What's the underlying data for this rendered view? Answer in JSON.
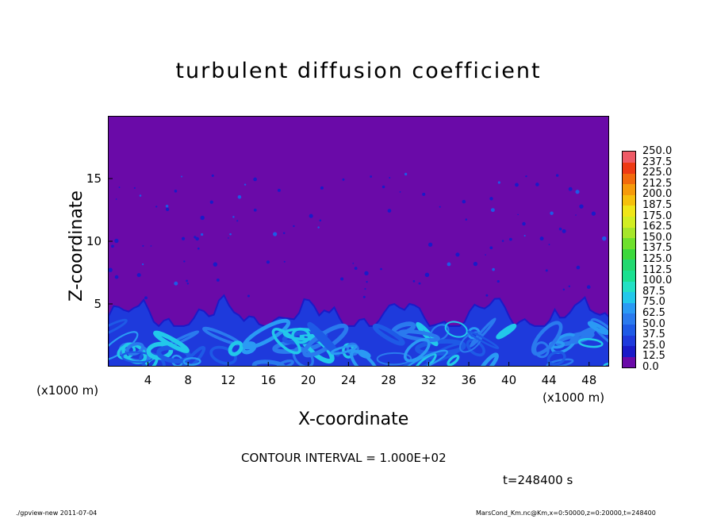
{
  "chart_data": {
    "type": "heatmap",
    "title": "turbulent diffusion coefficient",
    "xlabel": "X-coordinate",
    "ylabel": "Z-coordinate",
    "x_unit": "(x1000 m)",
    "xlim": [
      0,
      50
    ],
    "ylim": [
      0,
      20
    ],
    "x_ticks": [
      4,
      8,
      12,
      16,
      20,
      24,
      28,
      32,
      36,
      40,
      44,
      48
    ],
    "y_ticks": [
      5,
      10,
      15
    ],
    "colorbar": {
      "levels": [
        "0.0",
        "12.5",
        "25.0",
        "37.5",
        "50.0",
        "62.5",
        "75.0",
        "87.5",
        "100.0",
        "112.5",
        "125.0",
        "137.5",
        "150.0",
        "162.5",
        "175.0",
        "187.5",
        "200.0",
        "212.5",
        "225.0",
        "237.5",
        "250.0"
      ],
      "colors": [
        "#6a0aa8",
        "#1a1ac8",
        "#1e3adc",
        "#1e5ae6",
        "#2a7aee",
        "#2a9af4",
        "#22c8ea",
        "#22e0c4",
        "#1ae090",
        "#22d870",
        "#3cd83c",
        "#6ee02c",
        "#a6e62a",
        "#d2ee22",
        "#f0e618",
        "#f6c00c",
        "#f69a0a",
        "#f26a0c",
        "#ee3a14",
        "#ee5a66"
      ]
    },
    "field_description_values": {
      "background_value_range": [
        0.0,
        12.5
      ],
      "boundary_layer_top_z_km": 4.5,
      "boundary_layer_max_value_range": [
        62.5,
        87.5
      ]
    }
  },
  "annotations": {
    "contour_interval": "CONTOUR INTERVAL = 1.000E+02",
    "time": "t=248400 s",
    "footer_left": "./gpview-new   2011-07-04",
    "footer_right": "MarsCond_Km.nc@Km,x=0:50000,z=0:20000,t=248400"
  }
}
